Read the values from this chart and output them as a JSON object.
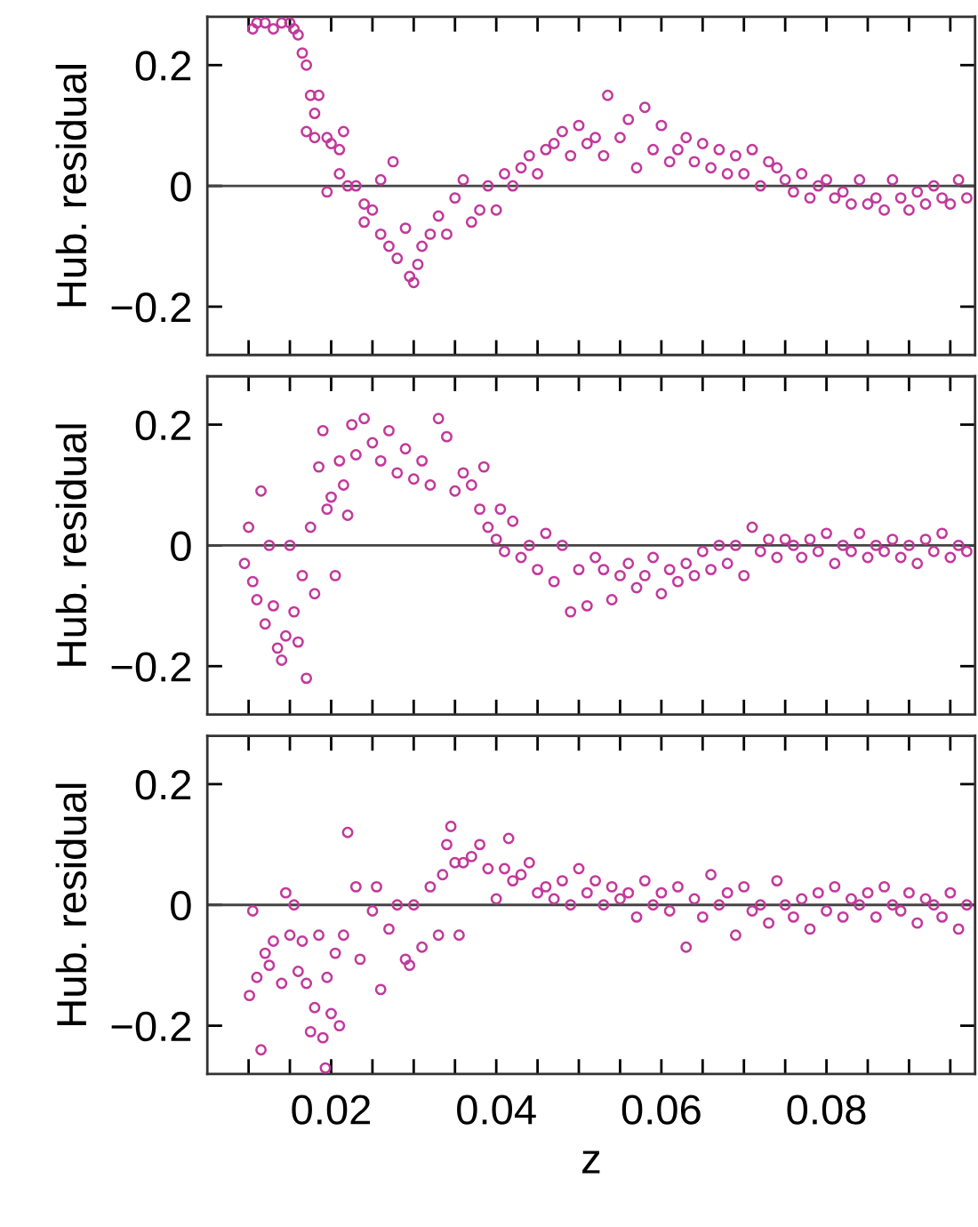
{
  "chart_data": [
    {
      "type": "scatter",
      "ylabel": "Hub. residual",
      "color": "#c2399b",
      "marker": "circle",
      "tick_labels": "y",
      "x": [
        0.0105,
        0.011,
        0.012,
        0.013,
        0.014,
        0.015,
        0.0155,
        0.016,
        0.0165,
        0.017,
        0.0175,
        0.018,
        0.0185,
        0.017,
        0.018,
        0.0195,
        0.0195,
        0.02,
        0.021,
        0.0215,
        0.021,
        0.022,
        0.023,
        0.024,
        0.024,
        0.025,
        0.026,
        0.026,
        0.027,
        0.0275,
        0.028,
        0.029,
        0.0295,
        0.03,
        0.0305,
        0.031,
        0.032,
        0.033,
        0.034,
        0.035,
        0.036,
        0.037,
        0.038,
        0.039,
        0.04,
        0.041,
        0.042,
        0.043,
        0.044,
        0.045,
        0.046,
        0.047,
        0.048,
        0.049,
        0.05,
        0.051,
        0.052,
        0.053,
        0.0535,
        0.055,
        0.056,
        0.057,
        0.058,
        0.059,
        0.06,
        0.061,
        0.062,
        0.063,
        0.064,
        0.065,
        0.066,
        0.067,
        0.068,
        0.069,
        0.07,
        0.071,
        0.072,
        0.073,
        0.074,
        0.075,
        0.076,
        0.077,
        0.078,
        0.079,
        0.08,
        0.081,
        0.082,
        0.083,
        0.084,
        0.085,
        0.086,
        0.087,
        0.088,
        0.089,
        0.09,
        0.091,
        0.092,
        0.093,
        0.094,
        0.095,
        0.096,
        0.097
      ],
      "values": [
        0.26,
        0.27,
        0.27,
        0.26,
        0.27,
        0.27,
        0.26,
        0.25,
        0.22,
        0.2,
        0.15,
        0.12,
        0.15,
        0.09,
        0.08,
        0.08,
        -0.01,
        0.07,
        0.06,
        0.09,
        0.02,
        0.0,
        0.0,
        -0.03,
        -0.06,
        -0.04,
        -0.08,
        0.01,
        -0.1,
        0.04,
        -0.12,
        -0.07,
        -0.15,
        -0.16,
        -0.13,
        -0.1,
        -0.08,
        -0.05,
        -0.08,
        -0.02,
        0.01,
        -0.06,
        -0.04,
        0.0,
        -0.04,
        0.02,
        0.0,
        0.03,
        0.05,
        0.02,
        0.06,
        0.07,
        0.09,
        0.05,
        0.1,
        0.07,
        0.08,
        0.05,
        0.15,
        0.08,
        0.11,
        0.03,
        0.13,
        0.06,
        0.1,
        0.04,
        0.06,
        0.08,
        0.04,
        0.07,
        0.03,
        0.06,
        0.02,
        0.05,
        0.02,
        0.06,
        0.0,
        0.04,
        0.03,
        0.01,
        -0.01,
        0.02,
        -0.02,
        0.0,
        0.01,
        -0.02,
        -0.01,
        -0.03,
        0.01,
        -0.03,
        -0.02,
        -0.04,
        0.01,
        -0.02,
        -0.04,
        -0.01,
        -0.03,
        0.0,
        -0.02,
        -0.03,
        0.01,
        -0.02
      ],
      "xlim": [
        0.005,
        0.098
      ],
      "ylim": [
        -0.28,
        0.28
      ],
      "yticks": [
        -0.2,
        0,
        0.2
      ],
      "xticks": [
        {
          "value": 0.01,
          "label": null
        },
        {
          "value": 0.015,
          "label": null
        },
        {
          "value": 0.02,
          "label": null
        },
        {
          "value": 0.025,
          "label": null
        },
        {
          "value": 0.03,
          "label": null
        },
        {
          "value": 0.035,
          "label": null
        },
        {
          "value": 0.04,
          "label": null
        },
        {
          "value": 0.045,
          "label": null
        },
        {
          "value": 0.05,
          "label": null
        },
        {
          "value": 0.055,
          "label": null
        },
        {
          "value": 0.06,
          "label": null
        },
        {
          "value": 0.065,
          "label": null
        },
        {
          "value": 0.07,
          "label": null
        },
        {
          "value": 0.075,
          "label": null
        },
        {
          "value": 0.08,
          "label": null
        },
        {
          "value": 0.085,
          "label": null
        },
        {
          "value": 0.09,
          "label": null
        },
        {
          "value": 0.095,
          "label": null
        }
      ],
      "ref_lines": [
        {
          "axis": "y",
          "value": 0,
          "color": "#444444"
        }
      ]
    },
    {
      "type": "scatter",
      "ylabel": "Hub. residual",
      "color": "#c2399b",
      "marker": "circle",
      "tick_labels": "y",
      "x": [
        0.0095,
        0.01,
        0.0105,
        0.011,
        0.0115,
        0.012,
        0.0125,
        0.013,
        0.0135,
        0.014,
        0.0145,
        0.015,
        0.0155,
        0.016,
        0.0165,
        0.017,
        0.0175,
        0.018,
        0.0185,
        0.019,
        0.0195,
        0.02,
        0.0205,
        0.021,
        0.0215,
        0.022,
        0.0225,
        0.023,
        0.024,
        0.025,
        0.026,
        0.027,
        0.028,
        0.029,
        0.03,
        0.031,
        0.032,
        0.033,
        0.034,
        0.035,
        0.036,
        0.037,
        0.038,
        0.0385,
        0.039,
        0.04,
        0.0405,
        0.041,
        0.042,
        0.043,
        0.044,
        0.045,
        0.046,
        0.047,
        0.048,
        0.049,
        0.05,
        0.051,
        0.052,
        0.053,
        0.054,
        0.055,
        0.056,
        0.057,
        0.058,
        0.059,
        0.06,
        0.061,
        0.062,
        0.063,
        0.064,
        0.065,
        0.066,
        0.067,
        0.068,
        0.069,
        0.07,
        0.071,
        0.072,
        0.073,
        0.074,
        0.075,
        0.076,
        0.077,
        0.078,
        0.079,
        0.08,
        0.081,
        0.082,
        0.083,
        0.084,
        0.085,
        0.086,
        0.087,
        0.088,
        0.089,
        0.09,
        0.091,
        0.092,
        0.093,
        0.094,
        0.095,
        0.096,
        0.097
      ],
      "values": [
        -0.03,
        0.03,
        -0.06,
        -0.09,
        0.09,
        -0.13,
        0.0,
        -0.1,
        -0.17,
        -0.19,
        -0.15,
        0.0,
        -0.11,
        -0.16,
        -0.05,
        -0.22,
        0.03,
        -0.08,
        0.13,
        0.19,
        0.06,
        0.08,
        -0.05,
        0.14,
        0.1,
        0.05,
        0.2,
        0.15,
        0.21,
        0.17,
        0.14,
        0.19,
        0.12,
        0.16,
        0.11,
        0.14,
        0.1,
        0.21,
        0.18,
        0.09,
        0.12,
        0.1,
        0.06,
        0.13,
        0.03,
        0.01,
        0.06,
        -0.01,
        0.04,
        -0.02,
        0.0,
        -0.04,
        0.02,
        -0.06,
        0.0,
        -0.11,
        -0.04,
        -0.1,
        -0.02,
        -0.04,
        -0.09,
        -0.05,
        -0.03,
        -0.07,
        -0.05,
        -0.02,
        -0.08,
        -0.04,
        -0.06,
        -0.03,
        -0.05,
        -0.01,
        -0.04,
        0.0,
        -0.03,
        0.0,
        -0.05,
        0.03,
        -0.01,
        0.01,
        -0.02,
        0.01,
        0.0,
        -0.02,
        0.01,
        -0.01,
        0.02,
        -0.03,
        0.0,
        -0.01,
        0.02,
        -0.02,
        0.0,
        -0.01,
        0.01,
        -0.02,
        0.0,
        -0.03,
        0.01,
        -0.01,
        0.02,
        -0.02,
        0.0,
        -0.01
      ],
      "xlim": [
        0.005,
        0.098
      ],
      "ylim": [
        -0.28,
        0.28
      ],
      "yticks": [
        -0.2,
        0,
        0.2
      ],
      "xticks": [
        {
          "value": 0.01,
          "label": null
        },
        {
          "value": 0.015,
          "label": null
        },
        {
          "value": 0.02,
          "label": null
        },
        {
          "value": 0.025,
          "label": null
        },
        {
          "value": 0.03,
          "label": null
        },
        {
          "value": 0.035,
          "label": null
        },
        {
          "value": 0.04,
          "label": null
        },
        {
          "value": 0.045,
          "label": null
        },
        {
          "value": 0.05,
          "label": null
        },
        {
          "value": 0.055,
          "label": null
        },
        {
          "value": 0.06,
          "label": null
        },
        {
          "value": 0.065,
          "label": null
        },
        {
          "value": 0.07,
          "label": null
        },
        {
          "value": 0.075,
          "label": null
        },
        {
          "value": 0.08,
          "label": null
        },
        {
          "value": 0.085,
          "label": null
        },
        {
          "value": 0.09,
          "label": null
        },
        {
          "value": 0.095,
          "label": null
        }
      ],
      "ref_lines": [
        {
          "axis": "y",
          "value": 0,
          "color": "#444444"
        }
      ]
    },
    {
      "type": "scatter",
      "ylabel": "Hub. residual",
      "xlabel": "z",
      "color": "#c2399b",
      "marker": "circle",
      "x": [
        0.0101,
        0.0105,
        0.011,
        0.0115,
        0.012,
        0.0125,
        0.013,
        0.014,
        0.0145,
        0.015,
        0.0155,
        0.016,
        0.0165,
        0.017,
        0.0175,
        0.018,
        0.0185,
        0.019,
        0.0193,
        0.0195,
        0.02,
        0.0205,
        0.021,
        0.0215,
        0.022,
        0.023,
        0.0235,
        0.025,
        0.0255,
        0.026,
        0.027,
        0.028,
        0.029,
        0.0295,
        0.03,
        0.031,
        0.032,
        0.033,
        0.0335,
        0.034,
        0.0345,
        0.035,
        0.0355,
        0.036,
        0.037,
        0.038,
        0.039,
        0.04,
        0.041,
        0.0415,
        0.042,
        0.043,
        0.044,
        0.045,
        0.046,
        0.047,
        0.048,
        0.049,
        0.05,
        0.051,
        0.052,
        0.053,
        0.054,
        0.055,
        0.056,
        0.057,
        0.058,
        0.059,
        0.06,
        0.061,
        0.062,
        0.063,
        0.064,
        0.065,
        0.066,
        0.067,
        0.068,
        0.069,
        0.07,
        0.071,
        0.072,
        0.073,
        0.074,
        0.075,
        0.076,
        0.077,
        0.078,
        0.079,
        0.08,
        0.081,
        0.082,
        0.083,
        0.084,
        0.085,
        0.086,
        0.087,
        0.088,
        0.089,
        0.09,
        0.091,
        0.092,
        0.093,
        0.094,
        0.095,
        0.096,
        0.097
      ],
      "values": [
        -0.15,
        -0.01,
        -0.12,
        -0.24,
        -0.08,
        -0.1,
        -0.06,
        -0.13,
        0.02,
        -0.05,
        0.0,
        -0.11,
        -0.06,
        -0.13,
        -0.21,
        -0.17,
        -0.05,
        -0.22,
        -0.27,
        -0.12,
        -0.18,
        -0.08,
        -0.2,
        -0.05,
        0.12,
        0.03,
        -0.09,
        -0.01,
        0.03,
        -0.14,
        -0.04,
        0.0,
        -0.09,
        -0.1,
        0.0,
        -0.07,
        0.03,
        -0.05,
        0.05,
        0.1,
        0.13,
        0.07,
        -0.05,
        0.07,
        0.08,
        0.1,
        0.06,
        0.01,
        0.06,
        0.11,
        0.04,
        0.05,
        0.07,
        0.02,
        0.03,
        0.01,
        0.04,
        0.0,
        0.06,
        0.02,
        0.04,
        0.0,
        0.03,
        0.01,
        0.02,
        -0.02,
        0.04,
        0.0,
        0.02,
        -0.01,
        0.03,
        -0.07,
        0.01,
        -0.02,
        0.05,
        0.0,
        0.02,
        -0.05,
        0.03,
        -0.01,
        0.0,
        -0.03,
        0.04,
        0.0,
        -0.02,
        0.01,
        -0.04,
        0.02,
        -0.01,
        0.03,
        -0.02,
        0.01,
        0.0,
        0.02,
        -0.02,
        0.03,
        0.0,
        -0.01,
        0.02,
        -0.03,
        0.01,
        0.0,
        -0.02,
        0.02,
        -0.04,
        0.0
      ],
      "xlim": [
        0.005,
        0.098
      ],
      "ylim": [
        -0.28,
        0.28
      ],
      "yticks": [
        -0.2,
        0,
        0.2
      ],
      "xticks": [
        {
          "value": 0.01,
          "label": null
        },
        {
          "value": 0.015,
          "label": null
        },
        0.02,
        {
          "value": 0.025,
          "label": null
        },
        {
          "value": 0.03,
          "label": null
        },
        {
          "value": 0.035,
          "label": null
        },
        0.04,
        {
          "value": 0.045,
          "label": null
        },
        {
          "value": 0.05,
          "label": null
        },
        {
          "value": 0.055,
          "label": null
        },
        0.06,
        {
          "value": 0.065,
          "label": null
        },
        {
          "value": 0.07,
          "label": null
        },
        {
          "value": 0.075,
          "label": null
        },
        0.08,
        {
          "value": 0.085,
          "label": null
        },
        {
          "value": 0.09,
          "label": null
        },
        {
          "value": 0.095,
          "label": null
        }
      ],
      "ref_lines": [
        {
          "axis": "y",
          "value": 0,
          "color": "#444444"
        }
      ]
    }
  ]
}
